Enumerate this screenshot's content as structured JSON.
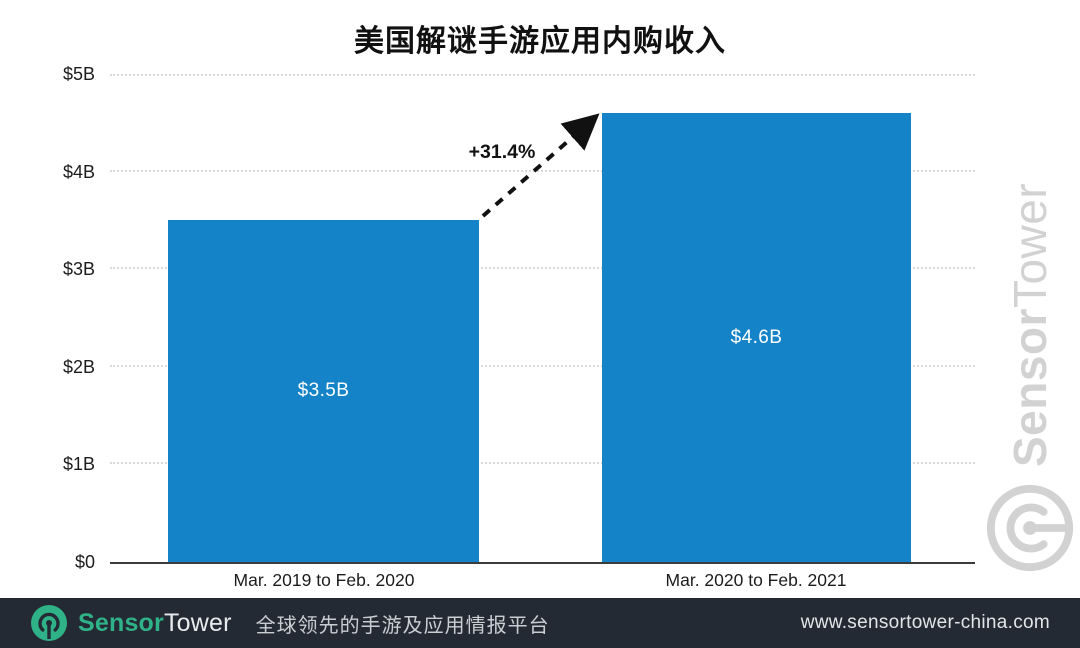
{
  "chart": {
    "title": "美国解谜手游应用内购收入",
    "annotation": "+31.4%",
    "y_ticks": {
      "t5": "$5B",
      "t4": "$4B",
      "t3": "$3B",
      "t2": "$2B",
      "t1": "$1B",
      "t0": "$0"
    },
    "bars": [
      {
        "category": "Mar. 2019 to Feb. 2020",
        "value_label": "$3.5B"
      },
      {
        "category": "Mar. 2020 to Feb. 2021",
        "value_label": "$4.6B"
      }
    ]
  },
  "chart_data": {
    "type": "bar",
    "title": "美国解谜手游应用内购收入",
    "categories": [
      "Mar. 2019 to Feb. 2020",
      "Mar. 2020 to Feb. 2021"
    ],
    "values": [
      3.5,
      4.6
    ],
    "value_labels": [
      "$3.5B",
      "$4.6B"
    ],
    "unit": "USD billions",
    "xlabel": "",
    "ylabel": "",
    "ylim": [
      0,
      5
    ],
    "y_tick_labels": [
      "$0",
      "$1B",
      "$2B",
      "$3B",
      "$4B",
      "$5B"
    ],
    "grid": "horizontal dotted gridlines on, solid zero baseline",
    "legend": "none",
    "bar_color": "#1583c8",
    "annotations": [
      {
        "text": "+31.4%",
        "type": "dashed-arrow",
        "from": "top of bar 1",
        "to": "top of bar 2"
      }
    ]
  },
  "watermark": {
    "brand_first": "Sensor",
    "brand_second": "Tower"
  },
  "footer": {
    "brand_first": "Sensor",
    "brand_second": "Tower",
    "tagline": "全球领先的手游及应用情报平台",
    "url": "www.sensortower-china.com"
  },
  "colors": {
    "bar": "#1583c8",
    "accent_teal": "#2fb287",
    "footer_bg": "#242a33",
    "watermark_gray": "#d2d2d2"
  }
}
